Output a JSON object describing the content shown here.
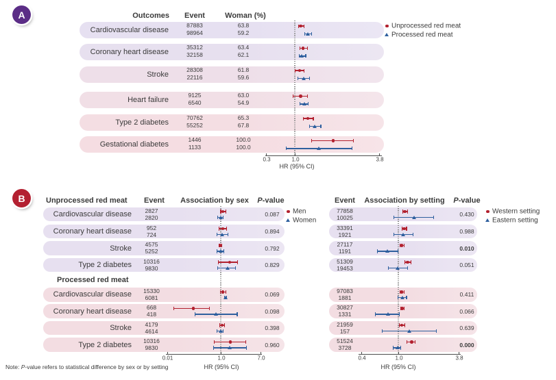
{
  "figure": {
    "note": {
      "prefix": "Note: ",
      "italic": "P",
      "rest": "-value refers to statistical difference by sex or by setting"
    },
    "colors": {
      "red": "#b2202e",
      "blue": "#2e5f9e",
      "panel_a_badge": "#5b2d86",
      "panel_b_badge": "#b32031",
      "pill_lavender": "#e7e0f0",
      "pill_pink": "#f3dde2",
      "axis": "#4c4c4c",
      "dotted": "#8a8a8a",
      "text": "#3a3a3a"
    }
  },
  "panelA": {
    "label": "A",
    "columns": {
      "outcomes": "Outcomes",
      "event": "Event",
      "woman": "Woman (%)"
    },
    "legend": [
      {
        "label": "Unprocessed red meat",
        "marker": "circle",
        "color": "#b2202e"
      },
      {
        "label": "Processed red meat",
        "marker": "triangle",
        "color": "#2e5f9e"
      }
    ],
    "chart_data": {
      "type": "forest",
      "axis": {
        "ticks": [
          "0.3",
          "1.0",
          "3.8"
        ],
        "label": "HR (95% CI)",
        "scale": "log",
        "reference": 1.0
      },
      "rows": [
        {
          "outcome": "Cardiovascular disease",
          "unprocessed": {
            "event": "87883",
            "woman": "63.8",
            "hr": 1.1,
            "lo": 1.06,
            "hi": 1.16
          },
          "processed": {
            "event": "98964",
            "woman": "59.2",
            "hr": 1.23,
            "lo": 1.17,
            "hi": 1.3
          }
        },
        {
          "outcome": "Coronary heart disease",
          "unprocessed": {
            "event": "35312",
            "woman": "63.4",
            "hr": 1.14,
            "lo": 1.08,
            "hi": 1.22
          },
          "processed": {
            "event": "32158",
            "woman": "62.1",
            "hr": 1.12,
            "lo": 1.07,
            "hi": 1.19
          }
        },
        {
          "outcome": "Stroke",
          "unprocessed": {
            "event": "28308",
            "woman": "61.8",
            "hr": 1.08,
            "lo": 1.01,
            "hi": 1.16
          },
          "processed": {
            "event": "22116",
            "woman": "59.6",
            "hr": 1.15,
            "lo": 1.05,
            "hi": 1.26
          }
        },
        {
          "outcome": "Heart failure",
          "unprocessed": {
            "event": "9125",
            "woman": "63.0",
            "hr": 1.1,
            "lo": 0.97,
            "hi": 1.22
          },
          "processed": {
            "event": "6540",
            "woman": "54.9",
            "hr": 1.17,
            "lo": 1.08,
            "hi": 1.24
          }
        },
        {
          "outcome": "Type 2 diabetes",
          "unprocessed": {
            "event": "70762",
            "woman": "65.3",
            "hr": 1.23,
            "lo": 1.14,
            "hi": 1.34
          },
          "processed": {
            "event": "55252",
            "woman": "67.8",
            "hr": 1.37,
            "lo": 1.26,
            "hi": 1.51
          }
        },
        {
          "outcome": "Gestational diabetes",
          "unprocessed": {
            "event": "1446",
            "woman": "100.0",
            "hr": 1.84,
            "lo": 1.31,
            "hi": 2.52
          },
          "processed": {
            "event": "1133",
            "woman": "100.0",
            "hr": 1.47,
            "lo": 0.87,
            "hi": 2.47
          }
        }
      ]
    }
  },
  "panelB": {
    "label": "B",
    "sections": [
      {
        "title": "Unprocessed red meat"
      },
      {
        "title": "Processed red meat"
      }
    ],
    "left": {
      "columns": {
        "event": "Event",
        "assoc": "Association by sex",
        "p_italic": "P",
        "p_rest": "-value"
      },
      "legend": [
        {
          "label": "Men",
          "marker": "circle",
          "color": "#b2202e"
        },
        {
          "label": "Women",
          "marker": "triangle",
          "color": "#2e5f9e"
        }
      ],
      "chart_data": {
        "type": "forest",
        "axis": {
          "ticks": [
            "0.01",
            "1.0",
            "7.0"
          ],
          "label": "HR (95% CI)",
          "scale": "log",
          "reference": 1.0
        },
        "rows": [
          {
            "outcome": "Cardiovascular disease",
            "men": {
              "event": "2827",
              "hr": 1.11,
              "lo": 1.0,
              "hi": 1.28
            },
            "women": {
              "event": "2820",
              "hr": 0.99,
              "lo": 0.87,
              "hi": 1.14
            },
            "p": "0.087",
            "p_bold": false
          },
          {
            "outcome": "Coronary heart disease",
            "men": {
              "event": "952",
              "hr": 1.11,
              "lo": 0.91,
              "hi": 1.34
            },
            "women": {
              "event": "724",
              "hr": 1.07,
              "lo": 0.84,
              "hi": 1.43
            },
            "p": "0.894",
            "p_bold": false
          },
          {
            "outcome": "Stroke",
            "men": {
              "event": "4575",
              "hr": 0.97,
              "lo": 0.91,
              "hi": 1.05
            },
            "women": {
              "event": "5252",
              "hr": 0.99,
              "lo": 0.84,
              "hi": 1.17
            },
            "p": "0.792",
            "p_bold": false
          },
          {
            "outcome": "Type 2 diabetes",
            "men": {
              "event": "10316",
              "hr": 1.55,
              "lo": 0.88,
              "hi": 2.29
            },
            "women": {
              "event": "9830",
              "hr": 1.38,
              "lo": 0.85,
              "hi": 2.05
            },
            "p": "0.829",
            "p_bold": false
          },
          {
            "outcome": "Cardiovascular disease",
            "men": {
              "event": "15330",
              "hr": 1.11,
              "lo": 0.99,
              "hi": 1.28
            },
            "women": {
              "event": "6081",
              "hr": 1.28,
              "lo": 1.22,
              "hi": 1.35
            },
            "p": "0.069",
            "p_bold": false
          },
          {
            "outcome": "Coronary heart disease",
            "men": {
              "event": "668",
              "hr": 0.26,
              "lo": 0.1,
              "hi": 0.58
            },
            "women": {
              "event": "418",
              "hr": 0.79,
              "lo": 0.28,
              "hi": 2.24
            },
            "p": "0.098",
            "p_bold": false
          },
          {
            "outcome": "Stroke",
            "men": {
              "event": "4179",
              "hr": 1.07,
              "lo": 0.96,
              "hi": 1.2
            },
            "women": {
              "event": "4614",
              "hr": 0.99,
              "lo": 0.84,
              "hi": 1.14
            },
            "p": "0.398",
            "p_bold": false
          },
          {
            "outcome": "Type 2 diabetes",
            "men": {
              "event": "10316",
              "hr": 1.6,
              "lo": 0.73,
              "hi": 3.39
            },
            "women": {
              "event": "9830",
              "hr": 1.55,
              "lo": 0.71,
              "hi": 3.5
            },
            "p": "0.960",
            "p_bold": false
          }
        ]
      }
    },
    "right": {
      "columns": {
        "event": "Event",
        "assoc": "Association by setting",
        "p_italic": "P",
        "p_rest": "-value"
      },
      "legend": [
        {
          "label": "Western setting",
          "marker": "circle",
          "color": "#b2202e"
        },
        {
          "label": "Eastern setting",
          "marker": "triangle",
          "color": "#2e5f9e"
        }
      ],
      "chart_data": {
        "type": "forest",
        "axis": {
          "ticks": [
            "0.4",
            "1.0",
            "3.8"
          ],
          "label": "HR (95% CI)",
          "scale": "log",
          "reference": 1.0
        },
        "rows": [
          {
            "western": {
              "event": "77858",
              "hr": 1.16,
              "lo": 1.11,
              "hi": 1.23
            },
            "eastern": {
              "event": "10025",
              "hr": 1.42,
              "lo": 0.91,
              "hi": 2.19
            },
            "p": "0.430",
            "p_bold": false
          },
          {
            "western": {
              "event": "33391",
              "hr": 1.14,
              "lo": 1.08,
              "hi": 1.2
            },
            "eastern": {
              "event": "1921",
              "hr": 1.12,
              "lo": 0.91,
              "hi": 1.38
            },
            "p": "0.988",
            "p_bold": false
          },
          {
            "western": {
              "event": "27117",
              "hr": 1.08,
              "lo": 1.04,
              "hi": 1.13
            },
            "eastern": {
              "event": "1191",
              "hr": 0.79,
              "lo": 0.63,
              "hi": 0.99
            },
            "p": "0.010",
            "p_bold": true
          },
          {
            "western": {
              "event": "51309",
              "hr": 1.23,
              "lo": 1.15,
              "hi": 1.32
            },
            "eastern": {
              "event": "19453",
              "hr": 0.99,
              "lo": 0.8,
              "hi": 1.23
            },
            "p": "0.051",
            "p_bold": false
          },
          {
            "western": {
              "event": "97083",
              "hr": 1.08,
              "lo": 1.04,
              "hi": 1.13
            },
            "eastern": {
              "event": "1881",
              "hr": 1.09,
              "lo": 0.99,
              "hi": 1.2
            },
            "p": "0.411",
            "p_bold": false
          },
          {
            "western": {
              "event": "30827",
              "hr": 1.09,
              "lo": 1.06,
              "hi": 1.13
            },
            "eastern": {
              "event": "1331",
              "hr": 0.8,
              "lo": 0.6,
              "hi": 1.02
            },
            "p": "0.066",
            "p_bold": false
          },
          {
            "western": {
              "event": "21959",
              "hr": 1.08,
              "lo": 1.02,
              "hi": 1.15
            },
            "eastern": {
              "event": "157",
              "hr": 1.27,
              "lo": 0.7,
              "hi": 2.32
            },
            "p": "0.639",
            "p_bold": false
          },
          {
            "western": {
              "event": "51524",
              "hr": 1.34,
              "lo": 1.21,
              "hi": 1.46
            },
            "eastern": {
              "event": "3728",
              "hr": 0.99,
              "lo": 0.89,
              "hi": 1.06
            },
            "p": "0.000",
            "p_bold": true
          }
        ]
      }
    }
  }
}
